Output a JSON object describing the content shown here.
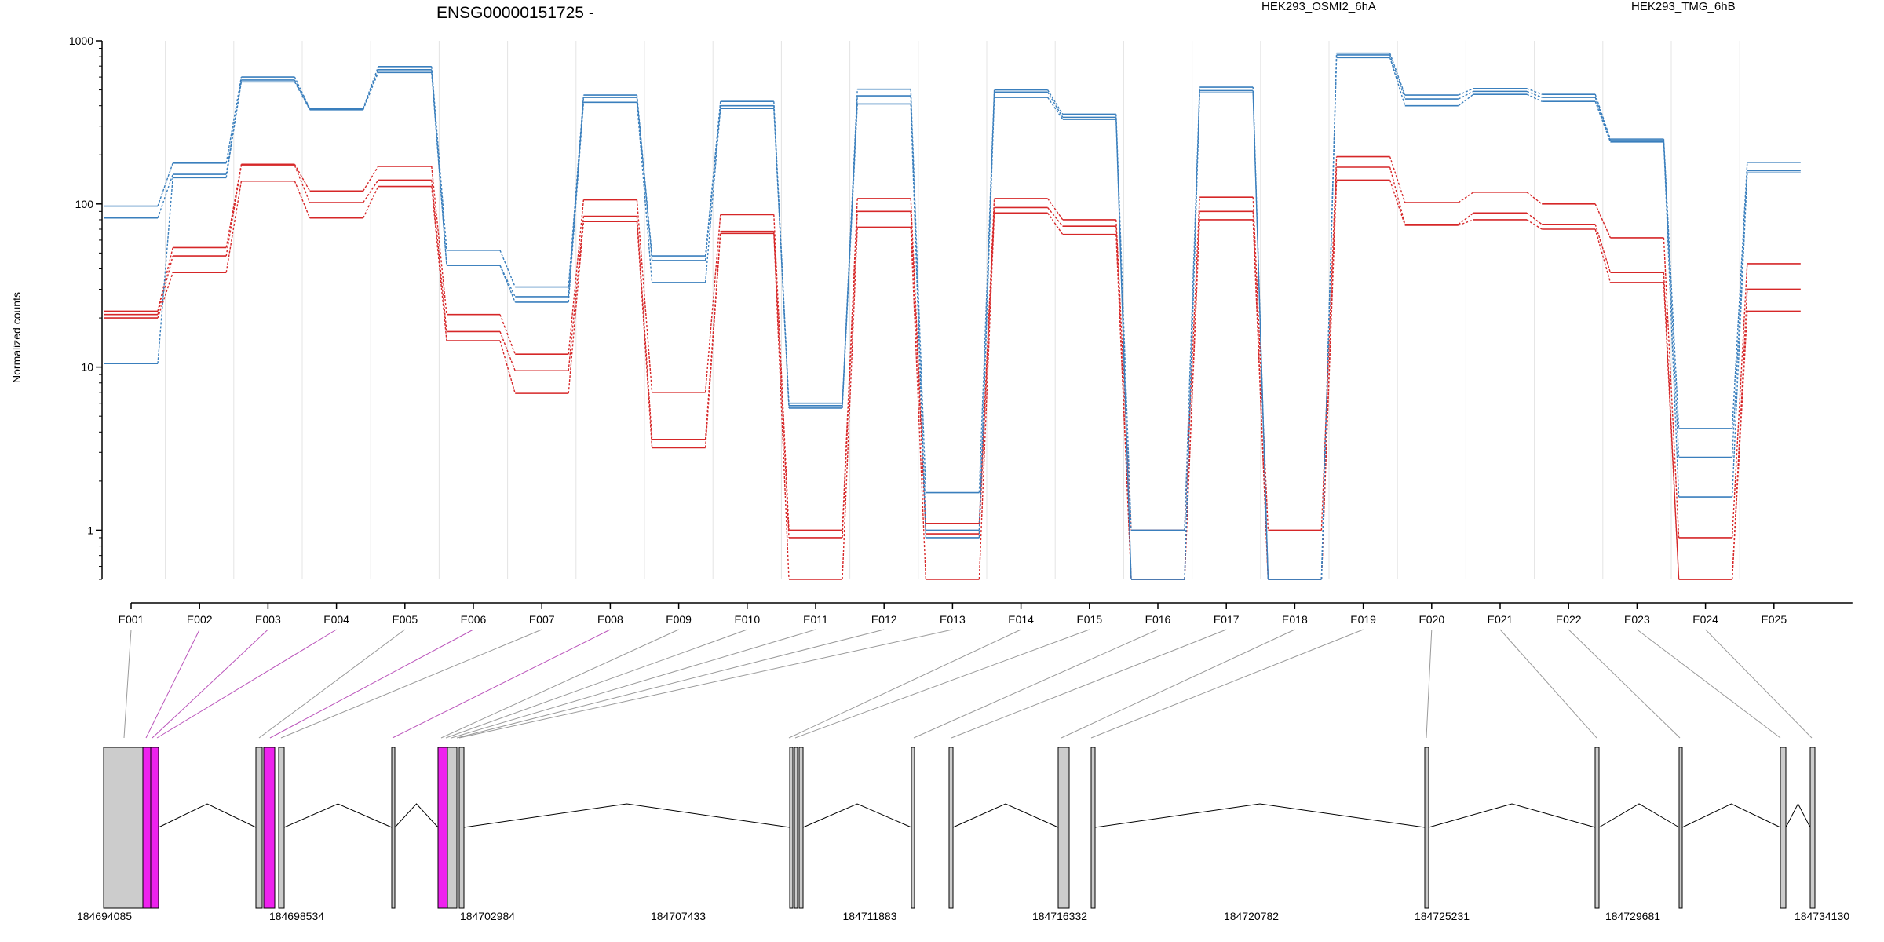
{
  "chart_data": {
    "type": "line",
    "title": "ENSG00000151725 -",
    "ylabel": "Normalized counts",
    "y_scale": "log",
    "ylim": [
      0.5,
      1000
    ],
    "y_ticks": [
      {
        "value": 1000,
        "label": "1000"
      },
      {
        "value": 100,
        "label": "100"
      },
      {
        "value": 10,
        "label": "10"
      },
      {
        "value": 1,
        "label": "1"
      }
    ],
    "categories": [
      "E001",
      "E002",
      "E003",
      "E004",
      "E005",
      "E006",
      "E007",
      "E008",
      "E009",
      "E010",
      "E011",
      "E012",
      "E013",
      "E014",
      "E015",
      "E016",
      "E017",
      "E018",
      "E019",
      "E020",
      "E021",
      "E022",
      "E023",
      "E024",
      "E025"
    ],
    "legend": [
      {
        "label": "HEK293_OSMI2_6hA",
        "color": "#d62728"
      },
      {
        "label": "HEK293_TMG_6hB",
        "color": "#3a7fbd"
      }
    ],
    "series": [
      {
        "group": 0,
        "values": [
          22,
          54,
          175,
          120,
          170,
          21,
          12,
          106,
          7,
          86,
          1.0,
          108,
          1.1,
          108,
          80,
          1.0,
          110,
          1.0,
          195,
          102,
          118,
          100,
          62,
          0.9,
          43
        ]
      },
      {
        "group": 0,
        "values": [
          21,
          48,
          172,
          102,
          140,
          16.5,
          9.5,
          84,
          3.6,
          68,
          0.9,
          90,
          0.95,
          95,
          73,
          0.5,
          90,
          0.5,
          168,
          75,
          88,
          75,
          38,
          0.5,
          30
        ]
      },
      {
        "group": 0,
        "values": [
          20,
          38,
          138,
          82,
          128,
          14.5,
          6.9,
          78,
          3.2,
          66,
          0.5,
          72,
          0.5,
          88,
          65,
          0.5,
          80,
          0.5,
          140,
          74,
          80,
          70,
          33,
          0.5,
          22
        ]
      },
      {
        "group": 1,
        "values": [
          97,
          178,
          600,
          385,
          695,
          52,
          31,
          465,
          48,
          425,
          6.0,
          505,
          1.7,
          500,
          355,
          1.0,
          520,
          0.5,
          840,
          465,
          510,
          470,
          250,
          4.2,
          180
        ]
      },
      {
        "group": 1,
        "values": [
          82,
          152,
          575,
          380,
          665,
          42,
          27,
          450,
          45,
          400,
          5.8,
          460,
          1.0,
          485,
          340,
          0.5,
          495,
          0.5,
          820,
          440,
          490,
          450,
          245,
          2.8,
          160
        ]
      },
      {
        "group": 1,
        "values": [
          10.5,
          145,
          560,
          378,
          640,
          42,
          25,
          420,
          33,
          385,
          5.6,
          410,
          0.9,
          450,
          330,
          0.5,
          480,
          0.5,
          790,
          400,
          470,
          425,
          240,
          1.6,
          155
        ]
      }
    ]
  },
  "gene_model": {
    "coord_labels": [
      "184694085",
      "184698534",
      "184702984",
      "184707433",
      "184711883",
      "184716332",
      "184720782",
      "184725231",
      "184729681",
      "184734130"
    ],
    "exon_highlight_color": "#ee22ee",
    "exon_color": "#cccccc"
  }
}
